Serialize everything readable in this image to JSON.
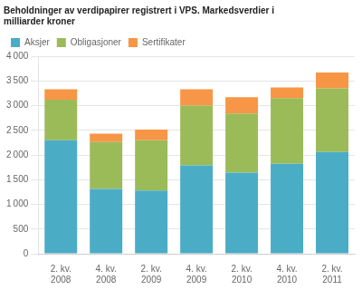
{
  "chart_data": {
    "type": "bar",
    "title": "Beholdninger av verdipapirer registrert i VPS. Markedsverdier i\nmilliarder kroner",
    "categories": [
      "2. kv.\n2008",
      "4. kv.\n2008",
      "2. kv.\n2009",
      "4. kv.\n2009",
      "2. kv.\n2010",
      "4. kv.\n2010",
      "2. kv.\n2011"
    ],
    "series": [
      {
        "name": "Aksjer",
        "color": "#4bacc6",
        "values": [
          2300,
          1310,
          1280,
          1790,
          1640,
          1820,
          2060
        ]
      },
      {
        "name": "Obligasjoner",
        "color": "#9bbb59",
        "values": [
          820,
          950,
          1020,
          1210,
          1200,
          1330,
          1290
        ]
      },
      {
        "name": "Sertifikater",
        "color": "#f79646",
        "values": [
          210,
          170,
          215,
          330,
          330,
          215,
          320
        ]
      }
    ],
    "stacked": true,
    "ylim": [
      0,
      4000
    ],
    "yticks": [
      0,
      500,
      {
        "value": 1000,
        "label": "1 000"
      },
      {
        "value": 1500,
        "label": "1 500"
      },
      {
        "value": 2000,
        "label": "2 000"
      },
      {
        "value": 2500,
        "label": "2 500"
      },
      {
        "value": 3000,
        "label": "3 000"
      },
      {
        "value": 3500,
        "label": "3 500"
      },
      {
        "value": 4000,
        "label": "4 000"
      }
    ],
    "grid": true,
    "legend": "upper left"
  }
}
